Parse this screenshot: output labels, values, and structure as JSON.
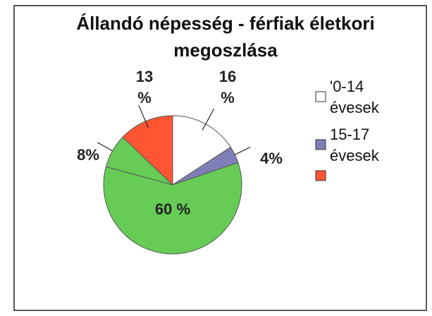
{
  "chart_data": {
    "type": "pie",
    "title": "Állandó népesség - férfiak életkori megoszlása",
    "categories": [
      "'0-14 évesek",
      "15-17 évesek",
      null,
      null,
      null
    ],
    "values": [
      16,
      4,
      60,
      8,
      13
    ],
    "value_labels": [
      "16 %",
      "4%",
      "60 %",
      "8%",
      "13 %"
    ],
    "colors": [
      "#ffffff",
      "#7f7fb8",
      "#66cc55",
      "#66cc55",
      "#ff5533"
    ]
  }
}
